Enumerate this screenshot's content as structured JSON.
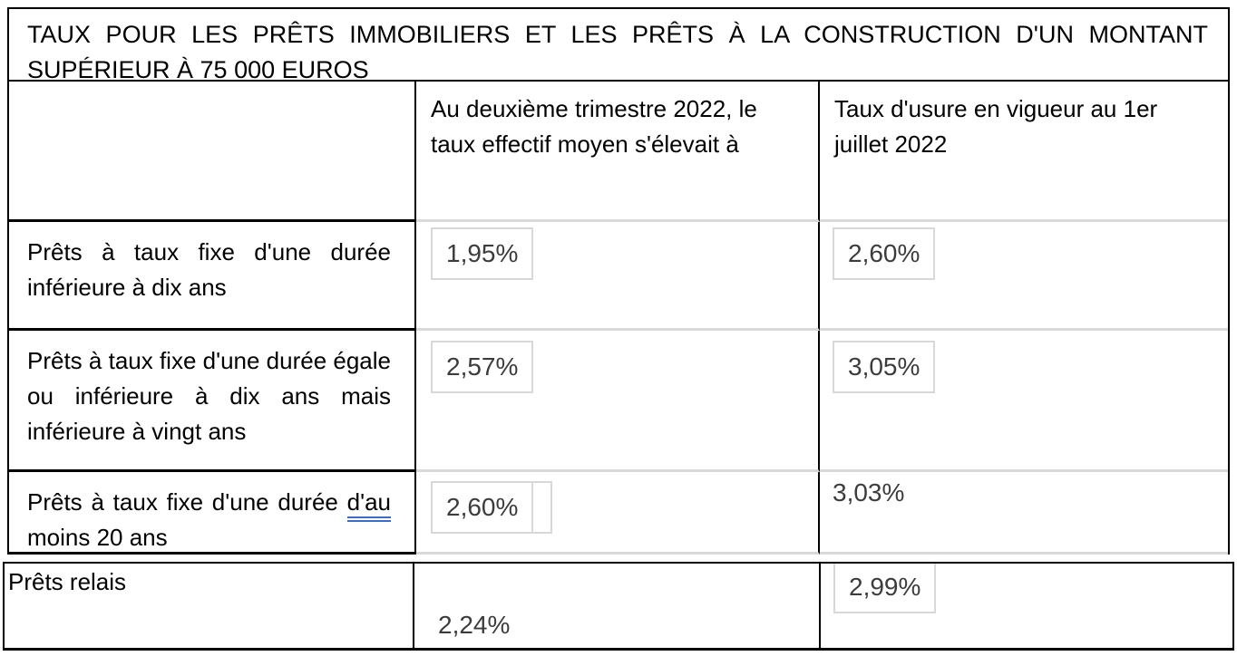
{
  "document_title": "TAUX POUR LES PRÊTS IMMOBILIERS ET LES PRÊTS À LA CONSTRUCTION D'UN MONTANT SUPÉRIEUR À 75 000 EUROS",
  "table": {
    "headers": {
      "effective_rate": "Au deuxième trimestre 2022, le taux effectif moyen s'élevait à",
      "usury_rate": "Taux d'usure en vigueur au 1er juillet 2022"
    },
    "rows": [
      {
        "label": "Prêts à taux fixe d'une durée inférieure à dix ans",
        "effective_rate": "1,95%",
        "usury_rate": "2,60%"
      },
      {
        "label": "Prêts à taux fixe d'une durée égale ou inférieure à dix ans mais inférieure à vingt ans",
        "effective_rate": "2,57%",
        "usury_rate": "3,05%"
      },
      {
        "label_prefix": "Prêts à taux fixe d'une durée",
        "label_underlined": "d'au",
        "label_suffix": "moins 20 ans",
        "effective_rate": "2,60%",
        "usury_rate": "3,03%"
      }
    ]
  },
  "bridge_table": {
    "label": "Prêts relais",
    "effective_rate": "2,24%",
    "usury_rate": "2,99%"
  },
  "colors": {
    "table_border": "#000000",
    "field_border": "#d8d8d8",
    "row_divider_gray": "#d9d9d9",
    "value_text": "#3c3c3c",
    "grammar_underline_blue": "#3b6cc8"
  }
}
